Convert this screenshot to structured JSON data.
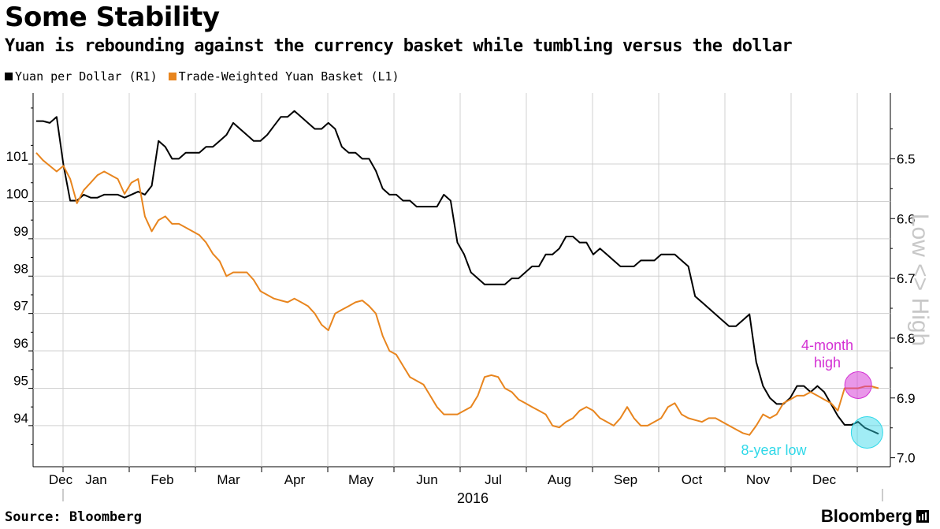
{
  "header": {
    "title": "Some Stability",
    "subtitle": "Yuan is rebounding against the currency basket while tumbling versus the dollar"
  },
  "legend": [
    {
      "label": "Yuan per Dollar (R1)",
      "color": "#000000"
    },
    {
      "label": "Trade-Weighted Yuan Basket (L1)",
      "color": "#e8851e"
    }
  ],
  "footer": {
    "source": "Source: Bloomberg",
    "brand": "Bloomberg"
  },
  "chart_data": {
    "type": "line",
    "x_labels": [
      "Dec",
      "Jan",
      "Feb",
      "Mar",
      "Apr",
      "May",
      "Jun",
      "Jul",
      "Aug",
      "Sep",
      "Oct",
      "Nov",
      "Dec"
    ],
    "year_label": "2016",
    "left_axis": {
      "ticks": [
        "94",
        "95",
        "96",
        "97",
        "98",
        "99",
        "100",
        "101"
      ],
      "ylim": [
        92.9,
        102.9
      ]
    },
    "right_axis": {
      "ticks": [
        "6.5",
        "6.6",
        "6.7",
        "6.8",
        "6.9",
        "7.0"
      ],
      "ylim": [
        6.39,
        7.015
      ],
      "inverted": true,
      "direction_label": "Low <> High"
    },
    "grid": true,
    "series": [
      {
        "name": "Yuan per Dollar (R1)",
        "axis": "right",
        "color": "#000000",
        "values": [
          6.437,
          6.437,
          6.44,
          6.43,
          6.51,
          6.57,
          6.57,
          6.56,
          6.565,
          6.565,
          6.56,
          6.56,
          6.56,
          6.565,
          6.56,
          6.555,
          6.56,
          6.545,
          6.47,
          6.48,
          6.5,
          6.5,
          6.49,
          6.49,
          6.49,
          6.48,
          6.48,
          6.47,
          6.46,
          6.44,
          6.45,
          6.46,
          6.47,
          6.47,
          6.46,
          6.445,
          6.43,
          6.43,
          6.42,
          6.43,
          6.44,
          6.45,
          6.45,
          6.44,
          6.45,
          6.48,
          6.49,
          6.49,
          6.5,
          6.5,
          6.52,
          6.55,
          6.56,
          6.56,
          6.57,
          6.57,
          6.58,
          6.58,
          6.58,
          6.58,
          6.56,
          6.57,
          6.64,
          6.66,
          6.69,
          6.7,
          6.71,
          6.71,
          6.71,
          6.71,
          6.7,
          6.7,
          6.69,
          6.68,
          6.68,
          6.66,
          6.66,
          6.65,
          6.63,
          6.63,
          6.64,
          6.64,
          6.66,
          6.65,
          6.66,
          6.67,
          6.68,
          6.68,
          6.68,
          6.67,
          6.67,
          6.67,
          6.66,
          6.66,
          6.66,
          6.67,
          6.68,
          6.73,
          6.74,
          6.75,
          6.76,
          6.77,
          6.78,
          6.78,
          6.77,
          6.76,
          6.84,
          6.88,
          6.9,
          6.91,
          6.91,
          6.9,
          6.88,
          6.88,
          6.89,
          6.88,
          6.89,
          6.91,
          6.93,
          6.945,
          6.945,
          6.94,
          6.95,
          6.955,
          6.96
        ]
      },
      {
        "name": "Trade-Weighted Yuan Basket (L1)",
        "axis": "left",
        "color": "#e8851e",
        "values": [
          101.3,
          101.1,
          100.95,
          100.8,
          100.95,
          100.6,
          99.95,
          100.3,
          100.5,
          100.7,
          100.8,
          100.7,
          100.6,
          100.2,
          100.5,
          100.6,
          99.6,
          99.2,
          99.5,
          99.6,
          99.4,
          99.4,
          99.3,
          99.2,
          99.1,
          98.9,
          98.6,
          98.4,
          98.0,
          98.1,
          98.1,
          98.1,
          97.9,
          97.6,
          97.5,
          97.4,
          97.35,
          97.3,
          97.4,
          97.3,
          97.2,
          97.0,
          96.7,
          96.55,
          97.0,
          97.1,
          97.2,
          97.3,
          97.35,
          97.2,
          97.0,
          96.4,
          96.0,
          95.9,
          95.6,
          95.3,
          95.2,
          95.1,
          94.8,
          94.5,
          94.3,
          94.3,
          94.3,
          94.4,
          94.5,
          94.8,
          95.3,
          95.35,
          95.3,
          95.0,
          94.9,
          94.7,
          94.6,
          94.5,
          94.4,
          94.3,
          94.0,
          93.95,
          94.1,
          94.2,
          94.4,
          94.5,
          94.4,
          94.2,
          94.1,
          94.0,
          94.2,
          94.5,
          94.2,
          94.0,
          94.0,
          94.1,
          94.2,
          94.5,
          94.6,
          94.3,
          94.2,
          94.15,
          94.1,
          94.2,
          94.2,
          94.1,
          94.0,
          93.9,
          93.8,
          93.75,
          94.0,
          94.3,
          94.2,
          94.3,
          94.6,
          94.7,
          94.8,
          94.8,
          94.9,
          94.8,
          94.7,
          94.6,
          94.4,
          95.0,
          95.0,
          95.0,
          95.05,
          95.05,
          95.0
        ]
      }
    ],
    "annotations": [
      {
        "text": "4-month high",
        "series": "Trade-Weighted Yuan Basket (L1)",
        "color": "#d32fd3"
      },
      {
        "text": "8-year low",
        "series": "Yuan per Dollar (R1)",
        "color": "#2fd8e8"
      }
    ]
  }
}
